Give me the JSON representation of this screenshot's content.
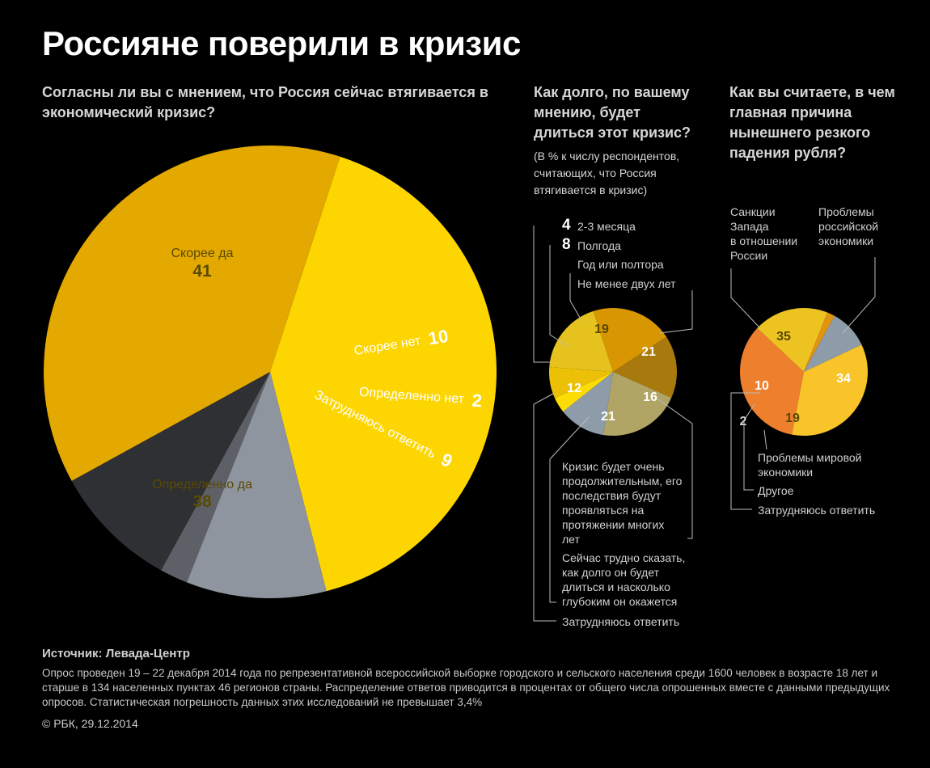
{
  "title": "Россияне поверили в кризис",
  "q1": {
    "text": "Согласны ли вы с мнением, что Россия сейчас втягивается в экономический кризис?"
  },
  "q2": {
    "text": "Как долго, по вашему мнению, будет длиться этот кризис?",
    "note": "(В % к числу респондентов, считающих, что Россия втягивается в кризис)"
  },
  "q3": {
    "text": "Как вы считаете, в чем главная причина нынешнего резкого падения рубля?"
  },
  "chart_data": [
    {
      "type": "pie",
      "categories": [
        "Скорее да",
        "Скорее нет",
        "Определенно нет",
        "Затрудняюсь ответить",
        "Определенно да"
      ],
      "values": [
        41,
        10,
        2,
        9,
        38
      ],
      "colors": [
        "#FDD602",
        "#8E959E",
        "#5D6067",
        "#2E3033",
        "#E3A900"
      ]
    },
    {
      "type": "pie",
      "categories": [
        "Не менее двух лет",
        "Кризис будет очень продолжительным, его последствия будут проявляться на протяжении многих лет",
        "Сейчас трудно сказать, как долго он будет длиться и насколько глубоким он окажется",
        "Затрудняюсь ответить",
        "2-3 месяца",
        "Полгода",
        "Год или полтора"
      ],
      "values": [
        21,
        16,
        21,
        12,
        4,
        8,
        19
      ],
      "colors": [
        "#D99603",
        "#A8790D",
        "#B1A565",
        "#8E9CA9",
        "#FBDC05",
        "#ECC006",
        "#E6C21E"
      ]
    },
    {
      "type": "pie",
      "categories": [
        "Проблемы российской экономики",
        "Проблемы мировой экономики",
        "Другое",
        "Затрудняюсь ответить",
        "Санкции Запада в отношении России"
      ],
      "values": [
        34,
        19,
        2,
        10,
        35
      ],
      "colors": [
        "#EE7F2D",
        "#EDC322",
        "#E1940F",
        "#8E9CA9",
        "#F8C42A"
      ]
    }
  ],
  "labels": {
    "c1": {
      "skoree_da": "Скорее да",
      "skoree_da_v": "41",
      "skoree_net": "Скорее нет",
      "skoree_net_v": "10",
      "opr_net": "Определенно нет",
      "opr_net_v": "2",
      "zatr": "Затрудняюсь ответить",
      "zatr_v": "9",
      "opr_da": "Определенно да",
      "opr_da_v": "38"
    },
    "c2": {
      "v1": "4",
      "t1": "2-3 месяца",
      "v2": "8",
      "t2": "Полгода",
      "t3": "Год или полтора",
      "t4": "Не менее двух лет",
      "s19": "19",
      "s21a": "21",
      "s16": "16",
      "s21b": "21",
      "s12": "12",
      "b1": [
        "Кризис будет очень",
        "продолжительным, его",
        "последствия будут",
        "проявляться на",
        "протяжении многих",
        "лет"
      ],
      "b2": [
        "Сейчас трудно сказать,",
        "как долго он будет",
        "длиться и насколько",
        "глубоким он окажется"
      ],
      "b3": "Затрудняюсь ответить"
    },
    "c3": {
      "sank": [
        "Санкции",
        "Запада",
        "в отношении",
        "России"
      ],
      "prob": [
        "Проблемы",
        "российской",
        "экономики"
      ],
      "s35": "35",
      "s34": "34",
      "s19": "19",
      "s10": "10",
      "s2": "2",
      "mir": [
        "Проблемы мировой",
        "экономики"
      ],
      "drug": "Другое",
      "zatr": "Затрудняюсь ответить"
    }
  },
  "footer": {
    "source": "Источник: Левада-Центр",
    "note": "Опрос проведен 19 – 22 декабря 2014 года  по репрезентативной всероссийской выборке городского и сельского населения среди 1600 человек в возрасте 18 лет и старше в 134 населенных пунктах 46 регионов страны. Распределение ответов приводится в процентах от общего числа опрошенных вместе с данными предыдущих опросов. Статистическая погрешность данных этих исследований не превышает 3,4%",
    "copyright": "© РБК, 29.12.2014"
  }
}
